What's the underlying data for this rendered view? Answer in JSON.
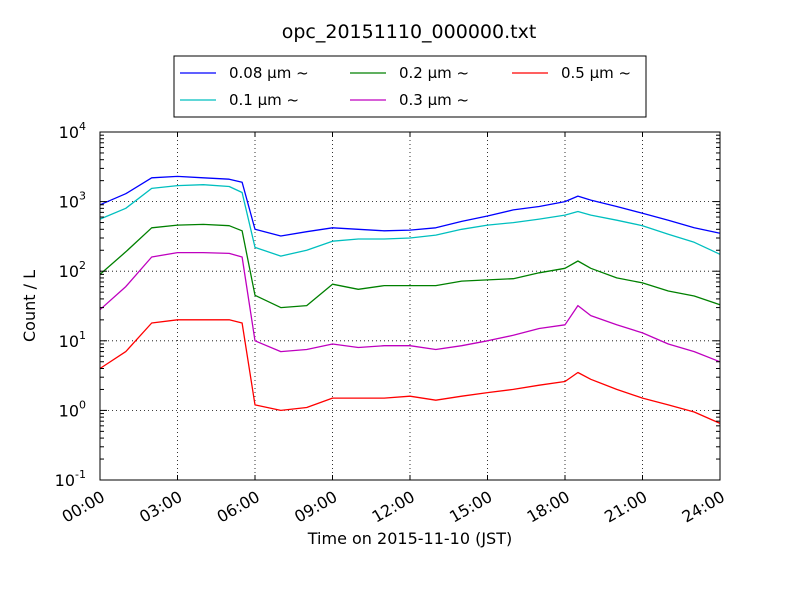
{
  "chart_data": {
    "type": "line",
    "title": "opc_20151110_000000.txt",
    "xlabel": "Time on 2015-11-10 (JST)",
    "ylabel": "Count / L",
    "xlim": [
      "00:00",
      "24:00"
    ],
    "ylim": [
      0.1,
      10000
    ],
    "yscale": "log",
    "grid": true,
    "legend_position": "top-center",
    "x_ticks": [
      "00:00",
      "03:00",
      "06:00",
      "09:00",
      "12:00",
      "15:00",
      "18:00",
      "21:00",
      "24:00"
    ],
    "y_ticks": [
      {
        "base": "10",
        "exp": "-1",
        "value": 0.1
      },
      {
        "base": "10",
        "exp": "0",
        "value": 1
      },
      {
        "base": "10",
        "exp": "1",
        "value": 10
      },
      {
        "base": "10",
        "exp": "2",
        "value": 100
      },
      {
        "base": "10",
        "exp": "3",
        "value": 1000
      },
      {
        "base": "10",
        "exp": "4",
        "value": 10000
      }
    ],
    "x": [
      "00:00",
      "01:00",
      "02:00",
      "03:00",
      "04:00",
      "05:00",
      "05:30",
      "06:00",
      "07:00",
      "08:00",
      "09:00",
      "10:00",
      "11:00",
      "12:00",
      "13:00",
      "14:00",
      "15:00",
      "16:00",
      "17:00",
      "18:00",
      "18:30",
      "19:00",
      "20:00",
      "21:00",
      "22:00",
      "23:00",
      "24:00"
    ],
    "series": [
      {
        "name": "0.08 μm ~",
        "color": "#0000ff",
        "values": [
          900,
          1300,
          2200,
          2300,
          2200,
          2100,
          1900,
          400,
          320,
          370,
          420,
          400,
          380,
          390,
          420,
          520,
          620,
          760,
          850,
          1000,
          1200,
          1050,
          850,
          680,
          540,
          420,
          350
        ]
      },
      {
        "name": "0.1 μm ~",
        "color": "#00bfbf",
        "values": [
          560,
          800,
          1550,
          1700,
          1750,
          1650,
          1350,
          220,
          165,
          200,
          270,
          290,
          290,
          300,
          330,
          400,
          460,
          500,
          560,
          640,
          720,
          640,
          540,
          450,
          340,
          260,
          175
        ]
      },
      {
        "name": "0.2 μm ~",
        "color": "#008000",
        "values": [
          90,
          190,
          420,
          460,
          470,
          450,
          380,
          45,
          30,
          32,
          65,
          55,
          62,
          62,
          62,
          72,
          75,
          78,
          95,
          110,
          140,
          110,
          80,
          68,
          52,
          44,
          33
        ]
      },
      {
        "name": "0.3 μm ~",
        "color": "#bf00bf",
        "values": [
          28,
          60,
          160,
          185,
          185,
          180,
          160,
          10,
          7,
          7.5,
          9,
          8,
          8.5,
          8.5,
          7.5,
          8.5,
          10,
          12,
          15,
          17,
          32,
          23,
          17,
          13,
          9,
          7,
          5
        ]
      },
      {
        "name": "0.5 μm ~",
        "color": "#ff0000",
        "values": [
          4,
          7,
          18,
          20,
          20,
          20,
          18,
          1.2,
          1,
          1.1,
          1.5,
          1.5,
          1.5,
          1.6,
          1.4,
          1.6,
          1.8,
          2,
          2.3,
          2.6,
          3.5,
          2.8,
          2,
          1.5,
          1.2,
          0.95,
          0.65
        ]
      }
    ]
  }
}
